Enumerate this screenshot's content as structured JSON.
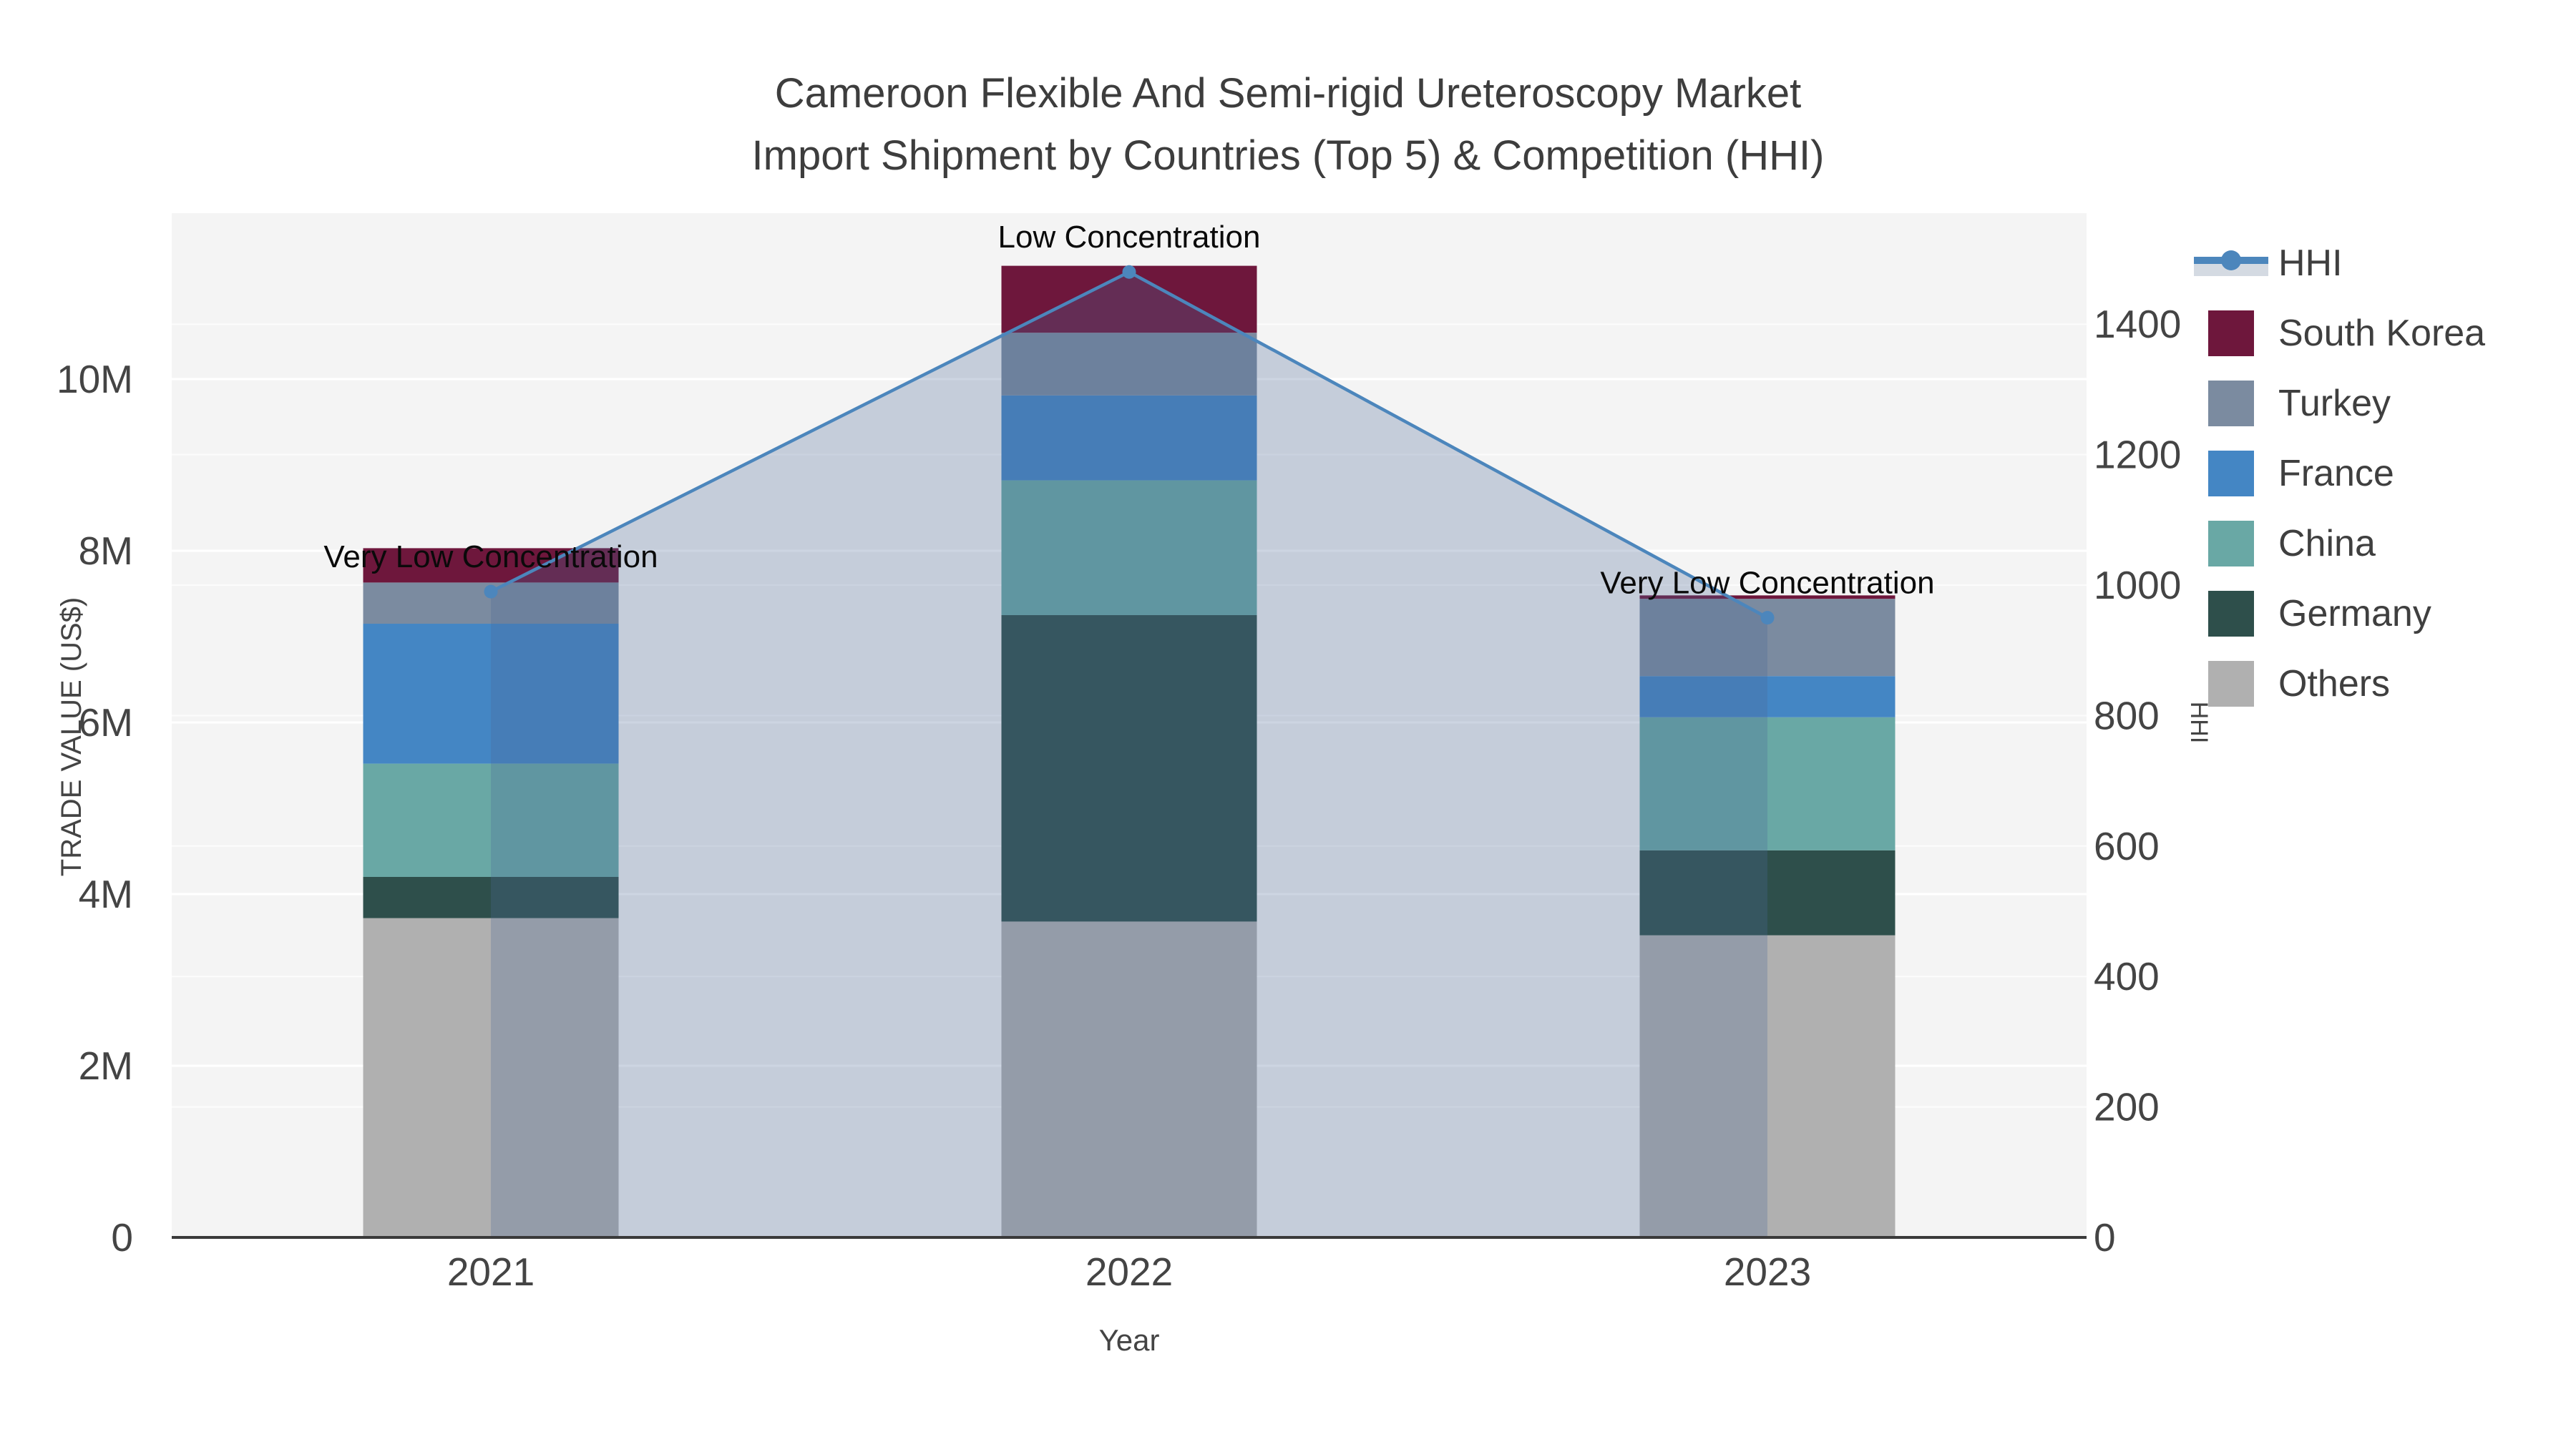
{
  "title": {
    "line1": "Cameroon Flexible And Semi-rigid Ureteroscopy Market",
    "line2": "Import Shipment by Countries (Top 5) & Competition (HHI)"
  },
  "chart_data": {
    "type": "bar",
    "subtype": "stacked_bars_with_line_overlay_dual_axis",
    "categories": [
      "2021",
      "2022",
      "2023"
    ],
    "xlabel": "Year",
    "y_left": {
      "label": "TRADE VALUE (US$)",
      "ticks": [
        {
          "value": 0,
          "label": "0"
        },
        {
          "value": 2000000,
          "label": "2M"
        },
        {
          "value": 4000000,
          "label": "4M"
        },
        {
          "value": 6000000,
          "label": "6M"
        },
        {
          "value": 8000000,
          "label": "8M"
        },
        {
          "value": 10000000,
          "label": "10M"
        }
      ],
      "range": [
        0,
        11930000
      ],
      "grid": true
    },
    "y_right": {
      "label": "HHI",
      "ticks": [
        0,
        200,
        400,
        600,
        800,
        1000,
        1200,
        1400
      ],
      "range": [
        0,
        1570
      ],
      "grid": true
    },
    "series": [
      {
        "name": "Others",
        "color": "#B0B0B0",
        "values": [
          3720000,
          3680000,
          3520000
        ]
      },
      {
        "name": "Germany",
        "color": "#2E4F4B",
        "values": [
          480000,
          3570000,
          990000
        ]
      },
      {
        "name": "China",
        "color": "#69A8A5",
        "values": [
          1320000,
          1570000,
          1550000
        ]
      },
      {
        "name": "France",
        "color": "#4486C4",
        "values": [
          1630000,
          990000,
          480000
        ]
      },
      {
        "name": "Turkey",
        "color": "#7B8BA0",
        "values": [
          480000,
          730000,
          900000
        ]
      },
      {
        "name": "South Korea",
        "color": "#6E173C",
        "values": [
          400000,
          780000,
          40000
        ]
      }
    ],
    "line": {
      "name": "HHI",
      "color": "#4C86BC",
      "area_fill": "rgba(75,105,150,0.28)",
      "legend_fill": "#D4DAE2",
      "values": [
        990,
        1480,
        950
      ]
    },
    "annotations": [
      {
        "category": "2021",
        "text": "Very Low Concentration"
      },
      {
        "category": "2022",
        "text": "Low Concentration"
      },
      {
        "category": "2023",
        "text": "Very Low Concentration"
      }
    ],
    "legend_order": [
      "HHI",
      "South Korea",
      "Turkey",
      "France",
      "China",
      "Germany",
      "Others"
    ],
    "colors": {
      "plot_bg": "#F4F4F4",
      "paper_bg": "#FFFFFF",
      "grid": "#FFFFFF",
      "axis_line": "#3A3A3A",
      "tick_text": "#444444",
      "title_text": "#3D3D3D",
      "annotation_text": "#0A0A0A"
    }
  }
}
